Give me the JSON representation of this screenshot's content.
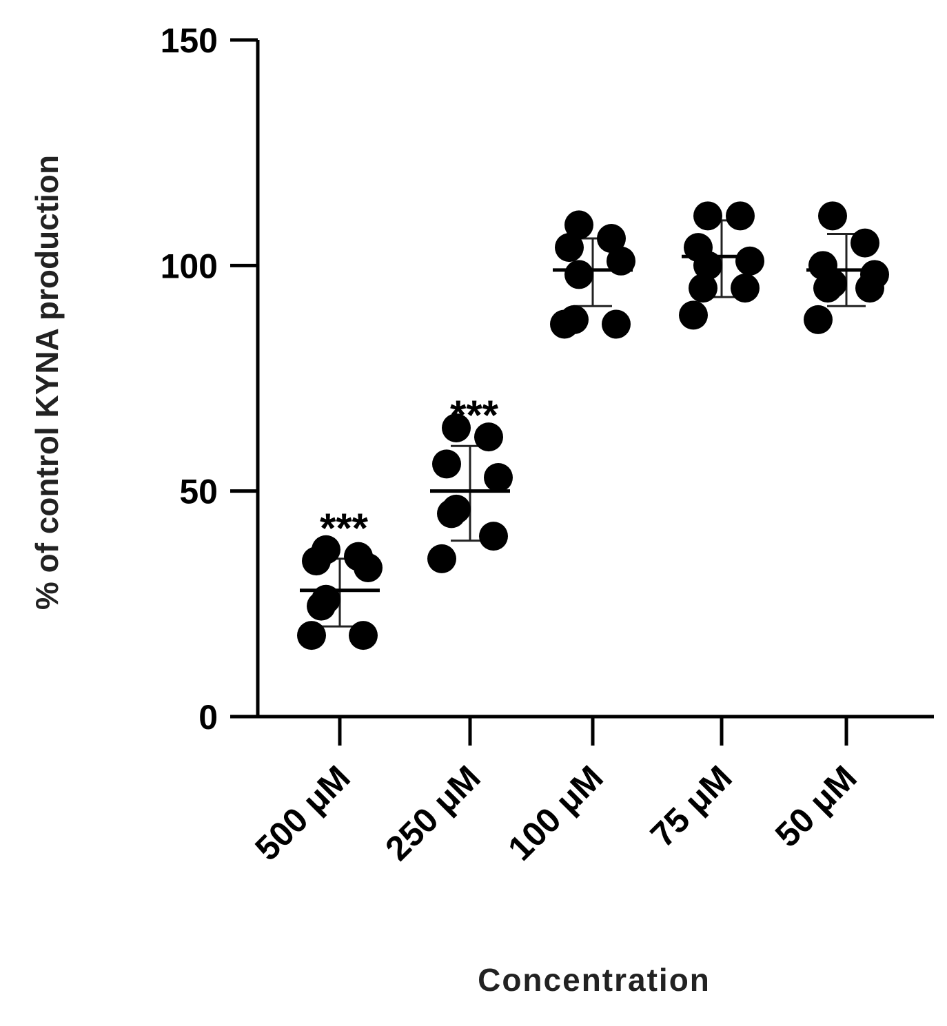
{
  "chart_data": {
    "type": "scatter",
    "xlabel": "Concentration",
    "ylabel": "% of control KYNA production",
    "ylim": [
      0,
      150
    ],
    "yticks": [
      "0",
      "50",
      "100",
      "150"
    ],
    "grid": false,
    "categories": [
      "500 μM",
      "250 μM",
      "100 μM",
      "75 μM",
      "50 μM"
    ],
    "groups": [
      {
        "category": "500 μM",
        "points": [
          37,
          35.5,
          34.5,
          33,
          26,
          24.5,
          18,
          18
        ],
        "mean": 28,
        "sd_low": 20,
        "sd_high": 35,
        "significance": "***"
      },
      {
        "category": "250 μM",
        "points": [
          64,
          62,
          56,
          53,
          46,
          45,
          40,
          35
        ],
        "mean": 50,
        "sd_low": 39,
        "sd_high": 60,
        "significance": "***"
      },
      {
        "category": "100 μM",
        "points": [
          109,
          106,
          104,
          101,
          98,
          88,
          87,
          87
        ],
        "mean": 99,
        "sd_low": 91,
        "sd_high": 106,
        "significance": ""
      },
      {
        "category": "75 μM",
        "points": [
          111,
          111,
          104,
          101,
          100,
          95,
          95,
          89
        ],
        "mean": 102,
        "sd_low": 93,
        "sd_high": 110,
        "significance": ""
      },
      {
        "category": "50 μM",
        "points": [
          111,
          105,
          100,
          98,
          96,
          95,
          95,
          88
        ],
        "mean": 99,
        "sd_low": 91,
        "sd_high": 107,
        "significance": ""
      }
    ]
  }
}
